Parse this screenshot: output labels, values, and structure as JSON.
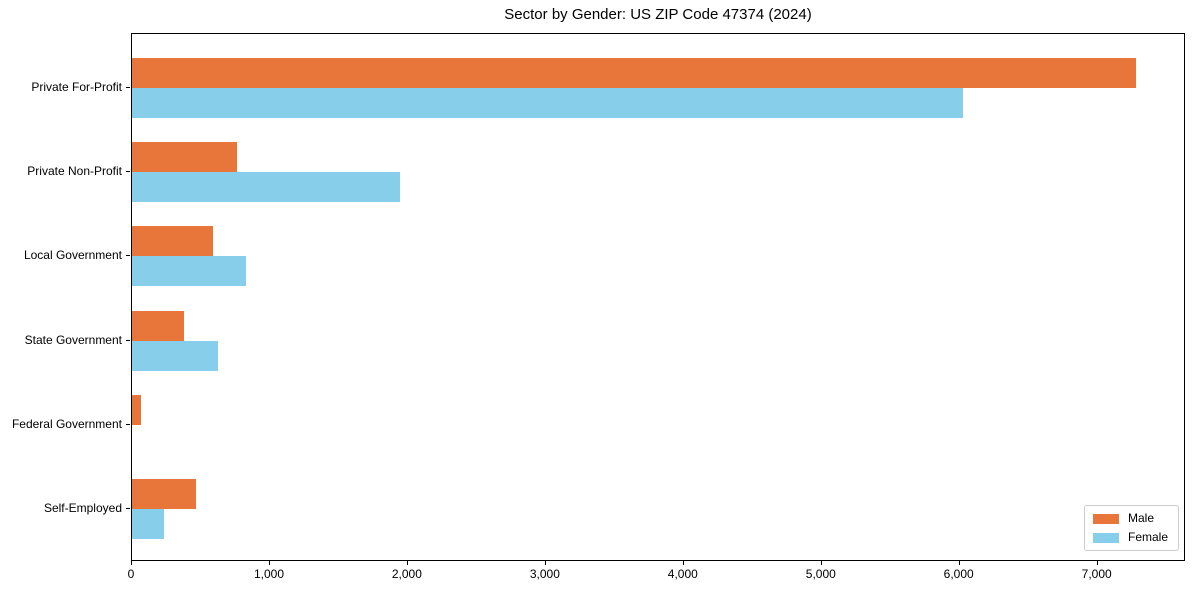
{
  "chart_data": {
    "type": "bar",
    "orientation": "horizontal",
    "title": "Sector by Gender: US ZIP Code 47374 (2024)",
    "categories": [
      "Private For-Profit",
      "Private Non-Profit",
      "Local Government",
      "State Government",
      "Federal Government",
      "Self-Employed"
    ],
    "series": [
      {
        "name": "Male",
        "color": "#e8763b",
        "values": [
          7280,
          760,
          585,
          380,
          65,
          460
        ]
      },
      {
        "name": "Female",
        "color": "#87ceeb",
        "values": [
          6020,
          1940,
          825,
          625,
          0,
          230
        ]
      }
    ],
    "xlabel": "",
    "ylabel": "",
    "xlim": [
      0,
      7640
    ],
    "xticks": [
      {
        "value": 0,
        "label": "0"
      },
      {
        "value": 1000,
        "label": "1,000"
      },
      {
        "value": 2000,
        "label": "2,000"
      },
      {
        "value": 3000,
        "label": "3,000"
      },
      {
        "value": 4000,
        "label": "4,000"
      },
      {
        "value": 5000,
        "label": "5,000"
      },
      {
        "value": 6000,
        "label": "6,000"
      },
      {
        "value": 7000,
        "label": "7,000"
      }
    ],
    "grid": false,
    "legend": {
      "position": "lower right",
      "labels": [
        "Male",
        "Female"
      ]
    }
  }
}
